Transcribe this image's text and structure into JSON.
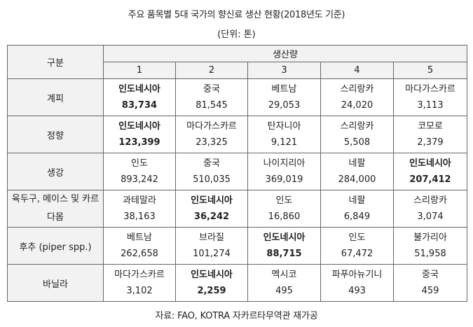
{
  "title": "주요 품목별 5대  국가의 향신료 생산 현황(2018년도 기준)",
  "unit": "(단위: 톤)",
  "header": {
    "category": "구분",
    "production": "생산량",
    "ranks": [
      "1",
      "2",
      "3",
      "4",
      "5"
    ]
  },
  "rows": [
    {
      "label": "계피",
      "cells": [
        {
          "country": "인도네시아",
          "value": "83,734",
          "bold": true
        },
        {
          "country": "중국",
          "value": "81,545",
          "bold": false
        },
        {
          "country": "베트남",
          "value": "29,053",
          "bold": false
        },
        {
          "country": "스리랑카",
          "value": "24,020",
          "bold": false
        },
        {
          "country": "마다가스카르",
          "value": "3,113",
          "bold": false
        }
      ]
    },
    {
      "label": "정향",
      "cells": [
        {
          "country": "인도네시아",
          "value": "123,399",
          "bold": true
        },
        {
          "country": "마다가스카르",
          "value": "23,325",
          "bold": false
        },
        {
          "country": "탄자니아",
          "value": "9,121",
          "bold": false
        },
        {
          "country": "스리랑카",
          "value": "5,508",
          "bold": false
        },
        {
          "country": "코모로",
          "value": "2,379",
          "bold": false
        }
      ]
    },
    {
      "label": "생강",
      "cells": [
        {
          "country": "인도",
          "value": "893,242",
          "bold": false
        },
        {
          "country": "중국",
          "value": "510,035",
          "bold": false
        },
        {
          "country": "나이지리아",
          "value": "369,019",
          "bold": false
        },
        {
          "country": "네팔",
          "value": "284,000",
          "bold": false
        },
        {
          "country": "인도네시아",
          "value": "207,412",
          "bold": true
        }
      ]
    },
    {
      "label": "육두구, 메이스 및 카르다몸",
      "cells": [
        {
          "country": "과테말라",
          "value": "38,163",
          "bold": false
        },
        {
          "country": "인도네시아",
          "value": "36,242",
          "bold": true
        },
        {
          "country": "인도",
          "value": "16,860",
          "bold": false
        },
        {
          "country": "네팔",
          "value": "6,849",
          "bold": false
        },
        {
          "country": "스리랑카",
          "value": "3,074",
          "bold": false
        }
      ]
    },
    {
      "label": "후추 (piper spp.)",
      "cells": [
        {
          "country": "베트남",
          "value": "262,658",
          "bold": false
        },
        {
          "country": "브라질",
          "value": "101,274",
          "bold": false
        },
        {
          "country": "인도네시아",
          "value": "88,715",
          "bold": true
        },
        {
          "country": "인도",
          "value": "67,472",
          "bold": false
        },
        {
          "country": "불가리아",
          "value": "51,958",
          "bold": false
        }
      ]
    },
    {
      "label": "바닐라",
      "cells": [
        {
          "country": "마다가스카르",
          "value": "3,102",
          "bold": false
        },
        {
          "country": "인도네시아",
          "value": "2,259",
          "bold": true
        },
        {
          "country": "멕시코",
          "value": "495",
          "bold": false
        },
        {
          "country": "파푸아뉴기니",
          "value": "493",
          "bold": false
        },
        {
          "country": "중국",
          "value": "459",
          "bold": false
        }
      ]
    }
  ],
  "source": "자료: FAO, KOTRA 자카르타무역관 재가공"
}
